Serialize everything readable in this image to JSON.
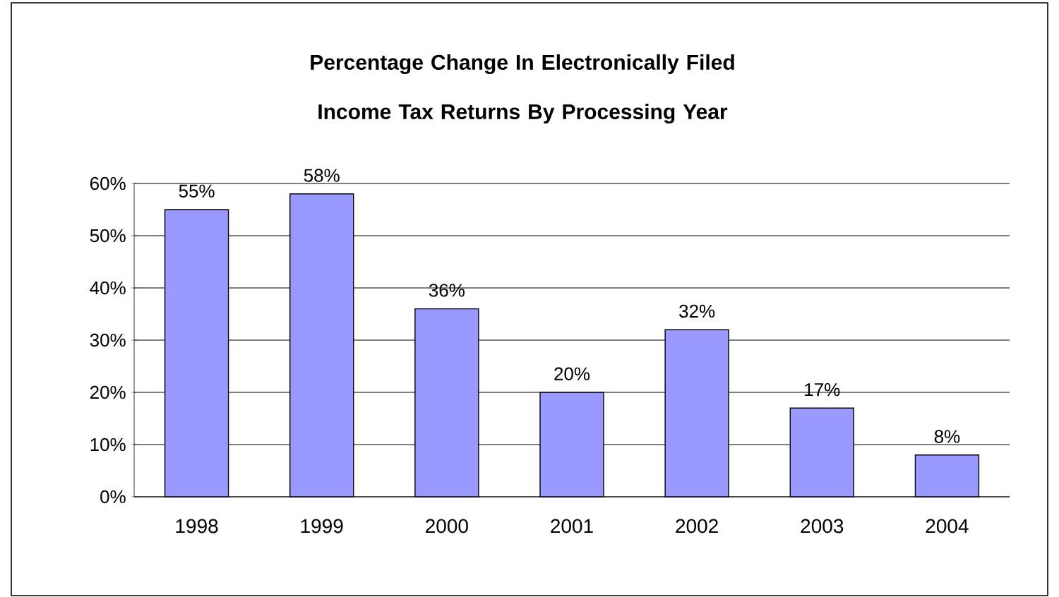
{
  "chart_data": {
    "type": "bar",
    "title": "Percentage Change In Electronically Filed Income Tax Returns By Processing Year",
    "categories": [
      "1998",
      "1999",
      "2000",
      "2001",
      "2002",
      "2003",
      "2004"
    ],
    "values": [
      55,
      58,
      36,
      20,
      32,
      17,
      8
    ],
    "value_labels": [
      "55%",
      "58%",
      "36%",
      "20%",
      "32%",
      "17%",
      "8%"
    ],
    "color": "#9999ff",
    "ylim": [
      0,
      60
    ],
    "yticks": [
      {
        "value": 0,
        "label": "0%"
      },
      {
        "value": 10,
        "label": "10%"
      },
      {
        "value": 20,
        "label": "20%"
      },
      {
        "value": 30,
        "label": "30%"
      },
      {
        "value": 40,
        "label": "40%"
      },
      {
        "value": 50,
        "label": "50%"
      },
      {
        "value": 60,
        "label": "60%"
      }
    ],
    "grid": "y"
  }
}
